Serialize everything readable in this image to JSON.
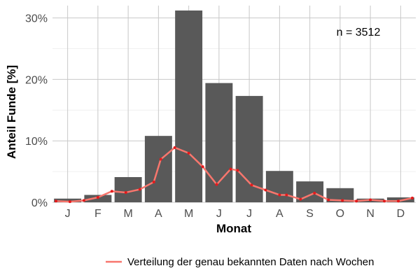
{
  "chart_data": {
    "type": "bar",
    "xlabel": "Monat",
    "ylabel": "Anteil Funde [%]",
    "categories": [
      "J",
      "F",
      "M",
      "A",
      "M",
      "J",
      "J",
      "A",
      "S",
      "O",
      "N",
      "D"
    ],
    "values": [
      0.6,
      1.2,
      4.1,
      10.8,
      31.2,
      19.4,
      17.3,
      5.1,
      3.4,
      2.3,
      0.6,
      0.8
    ],
    "ylim": [
      0,
      32
    ],
    "yticks": [
      0,
      10,
      20,
      30
    ],
    "ytick_labels": [
      "0%",
      "10%",
      "20%",
      "30%"
    ],
    "grid": true,
    "bar_color": "#595959",
    "annotation": "n = 3512",
    "legend_position": "bottom",
    "line_series": {
      "name": "Verteilung der genau bekannten Daten nach Wochen",
      "color": "#f8766d",
      "point_color": "#e41a1c",
      "x_weeks": [
        1,
        3,
        5,
        7,
        9,
        11,
        13,
        15,
        16,
        18,
        20,
        22,
        24,
        26,
        27,
        29,
        31,
        33,
        34,
        36,
        38,
        40,
        42,
        44,
        46,
        48,
        50,
        52
      ],
      "values": [
        0.2,
        0.1,
        0.3,
        0.8,
        1.8,
        1.6,
        2.1,
        3.3,
        7.0,
        8.9,
        8.0,
        5.8,
        2.9,
        5.4,
        5.2,
        2.8,
        2.0,
        1.2,
        1.2,
        0.5,
        1.5,
        0.4,
        0.3,
        0.2,
        0.4,
        0.2,
        0.2,
        0.7
      ]
    }
  }
}
